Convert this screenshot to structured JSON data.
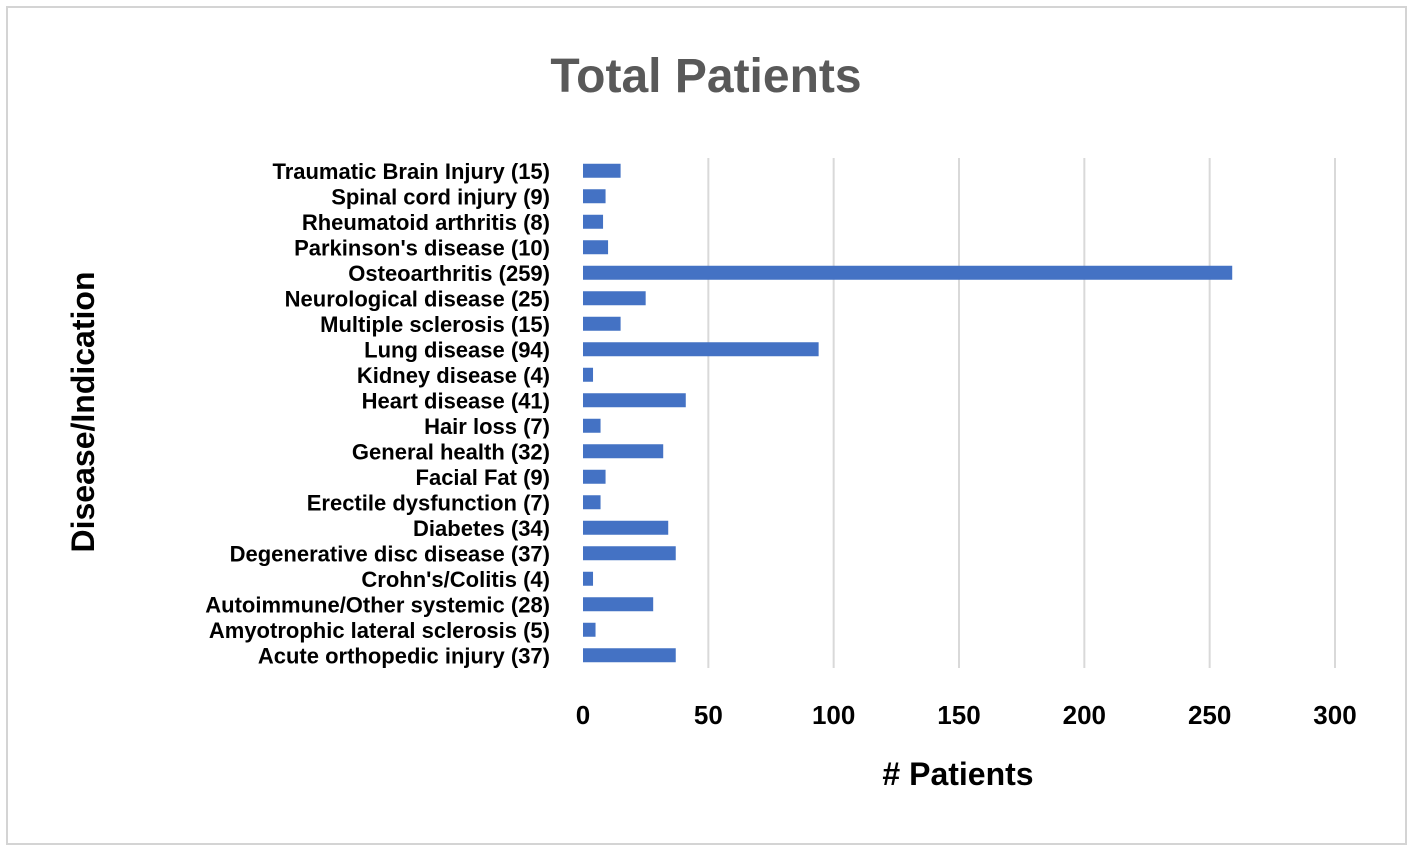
{
  "chart_data": {
    "type": "bar",
    "orientation": "horizontal",
    "title": "Total Patients",
    "xlabel": "# Patients",
    "ylabel": "Disease/Indication",
    "xlim": [
      0,
      300
    ],
    "xticks": [
      0,
      50,
      100,
      150,
      200,
      250,
      300
    ],
    "grid": true,
    "legend": "none",
    "bar_color": "#4472C4",
    "categories": [
      "Traumatic Brain Injury (15)",
      "Spinal cord injury (9)",
      "Rheumatoid arthritis (8)",
      "Parkinson's disease (10)",
      "Osteoarthritis (259)",
      "Neurological disease (25)",
      "Multiple sclerosis (15)",
      "Lung disease (94)",
      "Kidney disease (4)",
      "Heart disease (41)",
      "Hair loss (7)",
      "General health (32)",
      "Facial Fat (9)",
      "Erectile dysfunction (7)",
      "Diabetes (34)",
      "Degenerative disc disease (37)",
      "Crohn's/Colitis (4)",
      "Autoimmune/Other systemic (28)",
      "Amyotrophic lateral sclerosis (5)",
      "Acute orthopedic injury (37)"
    ],
    "values": [
      15,
      9,
      8,
      10,
      259,
      25,
      15,
      94,
      4,
      41,
      7,
      32,
      9,
      7,
      34,
      37,
      4,
      28,
      5,
      37
    ]
  }
}
